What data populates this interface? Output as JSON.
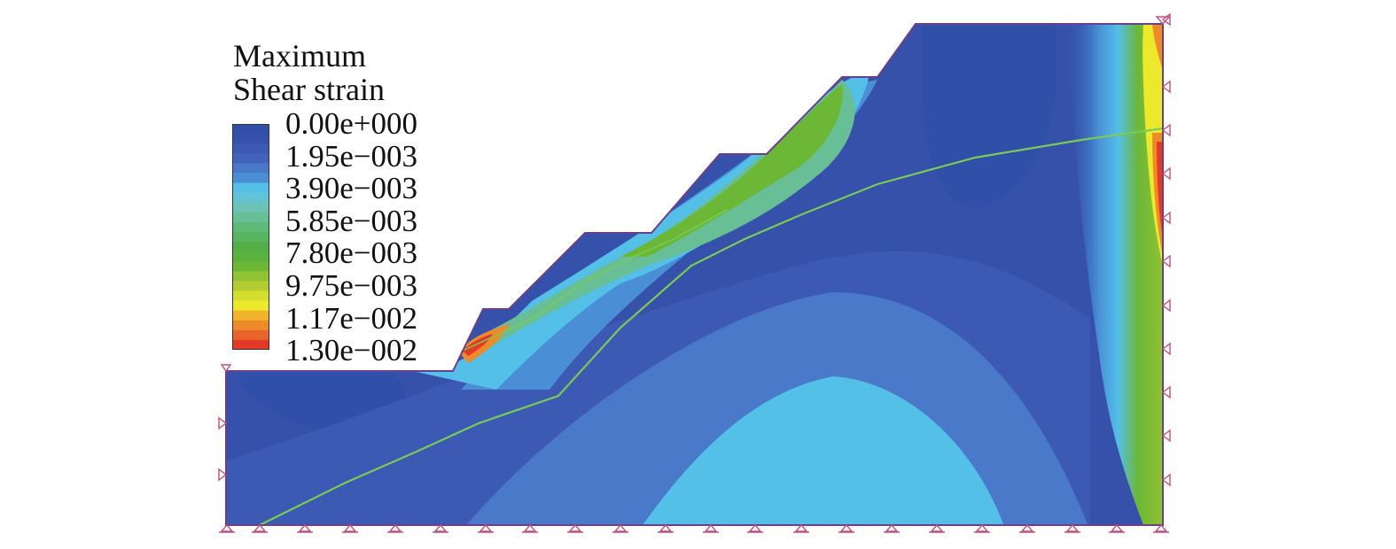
{
  "legend": {
    "title_line1": "Maximum",
    "title_line2": "Shear strain",
    "labels": [
      "0.00e+000",
      "1.95e−003",
      "3.90e−003",
      "5.85e−003",
      "7.80e−003",
      "9.75e−003",
      "1.17e−002",
      "1.30e−002"
    ],
    "colors": [
      "#2f4fa8",
      "#3651aa",
      "#3c5ab4",
      "#4262bc",
      "#4a79c9",
      "#4a8fd6",
      "#54bfe7",
      "#62c3d4",
      "#6cc3b5",
      "#68bf96",
      "#5fba79",
      "#57b45f",
      "#52ae45",
      "#58b23d",
      "#6cb736",
      "#90c233",
      "#b3cc31",
      "#d5dd2e",
      "#ece82c",
      "#f0b42b",
      "#ed8a2a",
      "#e9632a",
      "#e33a27"
    ]
  },
  "colors": {
    "contour_low": "#2f4fa8",
    "contour_mid": "#54bfe7",
    "contour_high": "#e33a27",
    "slip_line": "#7acb55",
    "support_symbol": "#c0507a",
    "boundary": "#6b3f8a"
  }
}
